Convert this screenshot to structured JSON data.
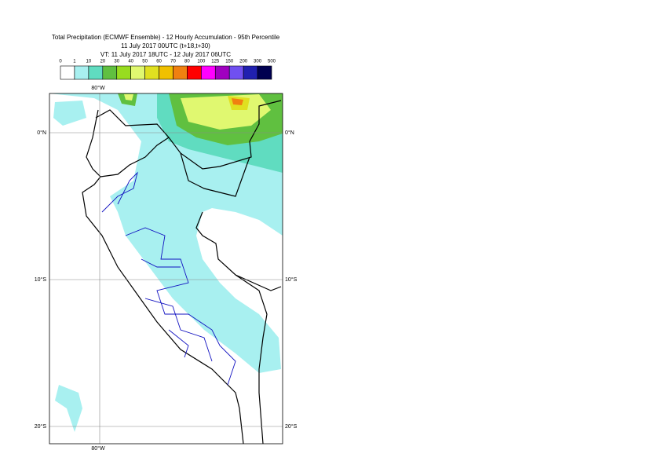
{
  "header": {
    "title": "Total Precipitation (ECMWF Ensemble) - 12 Hourly Accumulation - 95th Percentile",
    "run": "11 July 2017 00UTC (t+18,t+30)",
    "valid": "VT: 11 July 2017 18UTC - 12 July 2017 06UTC"
  },
  "legend": {
    "labels": [
      "0",
      "1",
      "10",
      "20",
      "30",
      "40",
      "50",
      "60",
      "70",
      "80",
      "100",
      "125",
      "150",
      "200",
      "300",
      "500"
    ],
    "colors": [
      "#ffffff",
      "#a8f0f0",
      "#60dcc0",
      "#60c040",
      "#98dc20",
      "#e0f870",
      "#e0e020",
      "#f0c000",
      "#f08010",
      "#ff0000",
      "#ff00ff",
      "#a000c0",
      "#7050f0",
      "#2020b0",
      "#000050"
    ]
  },
  "map": {
    "top_label": "80°W",
    "bottom_label": "80°W",
    "lat_labels": [
      "0°N",
      "10°S",
      "20°S"
    ]
  }
}
